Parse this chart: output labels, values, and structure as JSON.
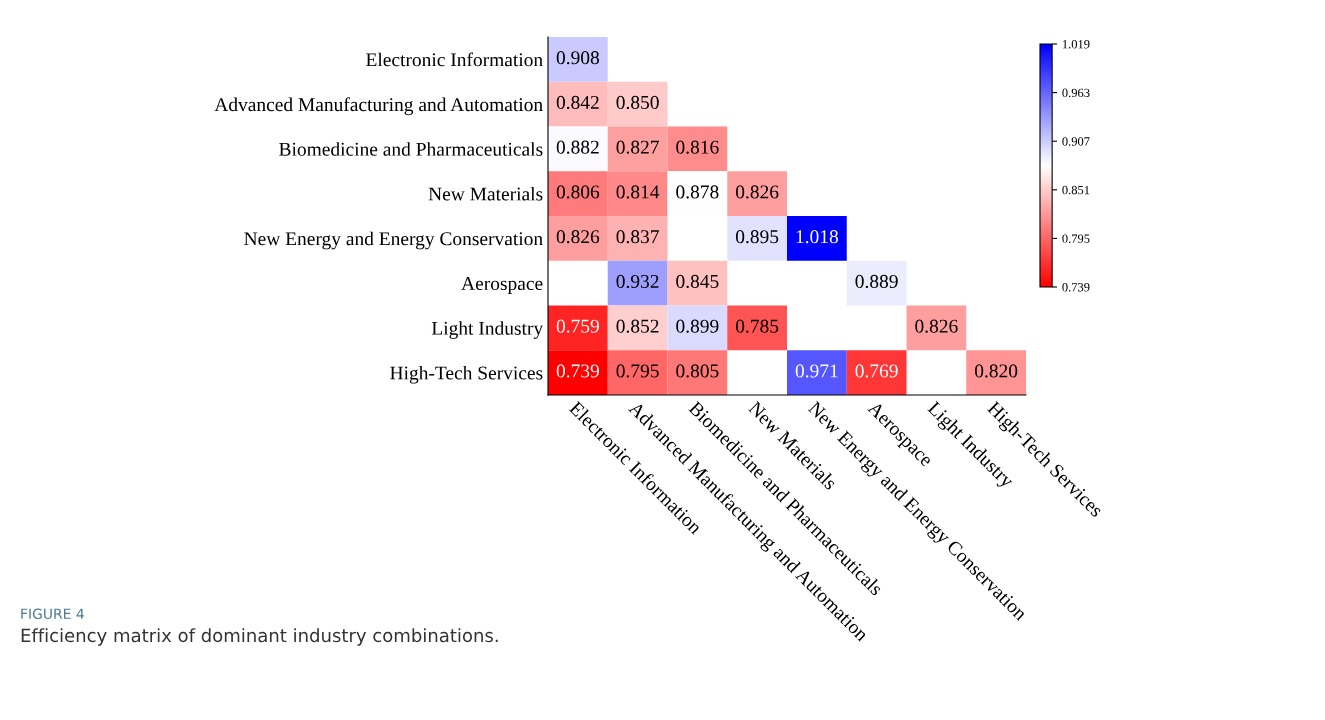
{
  "chart_data": {
    "type": "heatmap",
    "categories": [
      "Electronic Information",
      "Advanced Manufacturing and Automation",
      "Biomedicine and Pharmaceuticals",
      "New Materials",
      "New Energy and Energy Conservation",
      "Aerospace",
      "Light Industry",
      "High-Tech Services"
    ],
    "y_categories": [
      "Electronic Information",
      "Advanced Manufacturing and Automation",
      "Biomedicine and Pharmaceuticals",
      "New Materials",
      "New Energy and Energy Conservation",
      "Aerospace",
      "Light Industry",
      "High-Tech Services"
    ],
    "cells": [
      [
        0.908,
        null,
        null,
        null,
        null,
        null,
        null,
        null
      ],
      [
        0.842,
        0.85,
        null,
        null,
        null,
        null,
        null,
        null
      ],
      [
        0.882,
        0.827,
        0.816,
        null,
        null,
        null,
        null,
        null
      ],
      [
        0.806,
        0.814,
        0.878,
        0.826,
        null,
        null,
        null,
        null
      ],
      [
        0.826,
        0.837,
        null,
        0.895,
        1.018,
        null,
        null,
        null
      ],
      [
        null,
        0.932,
        0.845,
        null,
        null,
        0.889,
        null,
        null
      ],
      [
        0.759,
        0.852,
        0.899,
        0.785,
        null,
        null,
        0.826,
        null
      ],
      [
        0.739,
        0.795,
        0.805,
        null,
        0.971,
        0.769,
        null,
        0.82
      ]
    ],
    "data_labels": true,
    "clim": [
      0.739,
      1.019
    ],
    "cticks": [
      0.739,
      0.795,
      0.851,
      0.907,
      0.963,
      1.019
    ],
    "cell_labels": [
      [
        "0.908",
        null,
        null,
        null,
        null,
        null,
        null,
        null
      ],
      [
        "0.842",
        "0.850",
        null,
        null,
        null,
        null,
        null,
        null
      ],
      [
        "0.882",
        "0.827",
        "0.816",
        null,
        null,
        null,
        null,
        null
      ],
      [
        "0.806",
        "0.814",
        "0.878",
        "0.826",
        null,
        null,
        null,
        null
      ],
      [
        "0.826",
        "0.837",
        null,
        "0.895",
        "1.018",
        null,
        null,
        null
      ],
      [
        null,
        "0.932",
        "0.845",
        null,
        null,
        "0.889",
        null,
        null
      ],
      [
        "0.759",
        "0.852",
        "0.899",
        "0.785",
        null,
        null,
        "0.826",
        null
      ],
      [
        "0.739",
        "0.795",
        "0.805",
        null,
        "0.971",
        "0.769",
        null,
        "0.820"
      ]
    ],
    "annotations": [
      "FIGURE 4",
      "Efficiency matrix of dominant industry combinations."
    ]
  }
}
